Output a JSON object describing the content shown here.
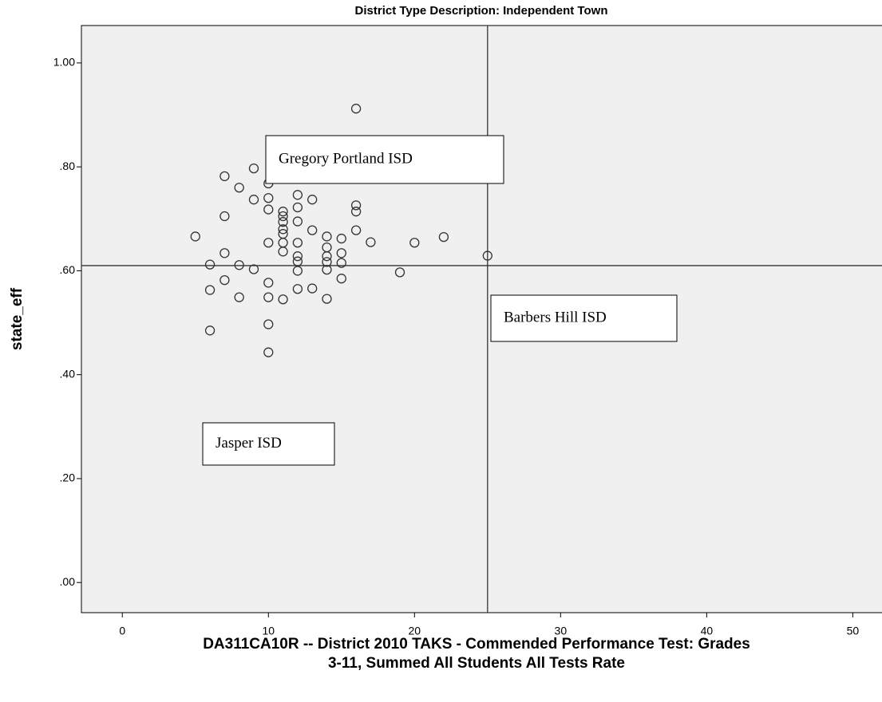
{
  "chart_data": {
    "type": "scatter",
    "title": "District Type Description: Independent Town",
    "x_label": [
      "DA311CA10R -- District 2010 TAKS - Commended Performance Test: Grades",
      "3-11, Summed All Students All Tests Rate"
    ],
    "y_label": "state_eff",
    "x": [
      5,
      6,
      6,
      6,
      7,
      7,
      7,
      7,
      8,
      8,
      8,
      9,
      9,
      9,
      10,
      10,
      10,
      10,
      10,
      10,
      10,
      10,
      11,
      11,
      11,
      11,
      11,
      11,
      11,
      11,
      12,
      12,
      12,
      12,
      12,
      12,
      12,
      12,
      13,
      13,
      13,
      14,
      14,
      14,
      14,
      14,
      14,
      15,
      15,
      15,
      15,
      16,
      16,
      16,
      16,
      17,
      19,
      20,
      22,
      25
    ],
    "values": [
      0.666,
      0.612,
      0.563,
      0.485,
      0.782,
      0.705,
      0.634,
      0.582,
      0.76,
      0.611,
      0.549,
      0.797,
      0.737,
      0.603,
      0.768,
      0.74,
      0.718,
      0.654,
      0.577,
      0.549,
      0.497,
      0.443,
      0.714,
      0.705,
      0.694,
      0.68,
      0.671,
      0.654,
      0.637,
      0.545,
      0.746,
      0.722,
      0.695,
      0.654,
      0.628,
      0.618,
      0.6,
      0.565,
      0.737,
      0.678,
      0.566,
      0.666,
      0.645,
      0.628,
      0.617,
      0.602,
      0.546,
      0.662,
      0.634,
      0.615,
      0.585,
      0.912,
      0.726,
      0.714,
      0.678,
      0.655,
      0.597,
      0.654,
      0.665,
      0.629
    ],
    "color": "#333333",
    "xlim": [
      -2.8,
      52
    ],
    "ylim": [
      -0.058,
      1.072
    ],
    "xticks": [
      0,
      10,
      20,
      30,
      40,
      50
    ],
    "yticks": [
      {
        "value": 0,
        "label": ".00"
      },
      {
        "value": 0.2,
        "label": ".20"
      },
      {
        "value": 0.4,
        "label": ".40"
      },
      {
        "value": 0.6,
        "label": ".60"
      },
      {
        "value": 0.8,
        "label": ".80"
      },
      {
        "value": 1,
        "label": "1.00"
      }
    ],
    "reference_lines": {
      "x": 25,
      "y": 0.61
    },
    "annotations": [
      "Gregory Portland ISD",
      "Barbers Hill ISD",
      "Jasper ISD"
    ]
  }
}
